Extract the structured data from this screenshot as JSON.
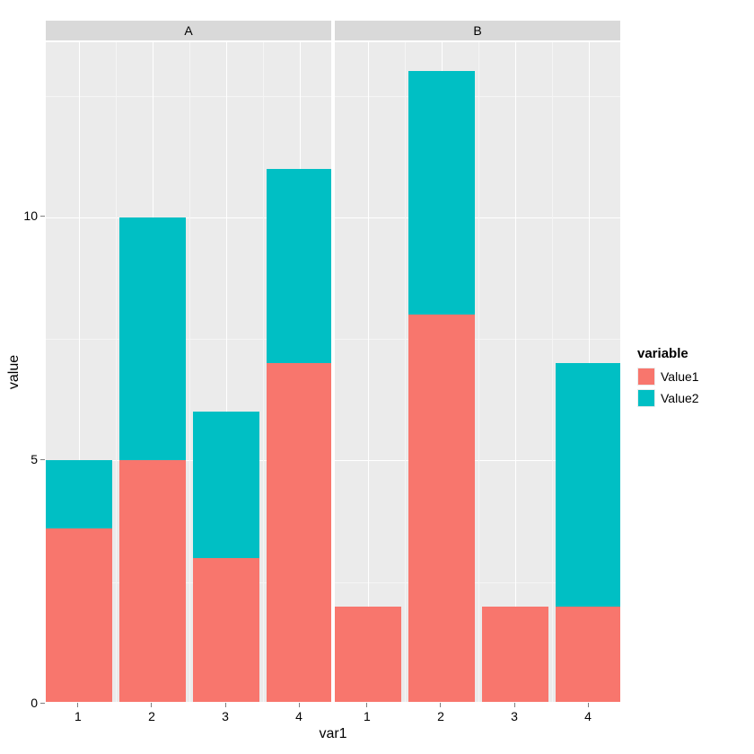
{
  "chart": {
    "type": "bar",
    "stacking": "stacked",
    "faceted_by": "facet",
    "x_title": "var1",
    "y_title": "value",
    "background_color": "#ffffff",
    "panel_background": "#ebebeb",
    "grid_major_color": "#ffffff",
    "grid_minor_color": "#f5f5f5",
    "facet_strip_background": "#d9d9d9",
    "axis_text_color": "#000000",
    "tick_color": "#7f7f7f",
    "title_fontsize": 16,
    "tick_fontsize": 14,
    "legend_title_fontsize": 15,
    "legend_label_fontsize": 14,
    "bar_width": 0.9,
    "ylim": [
      0,
      13.6
    ],
    "y_ticks": [
      0,
      5,
      10
    ],
    "y_minor_ticks": [
      2.5,
      7.5,
      12.5
    ],
    "x_ticks": [
      1,
      2,
      3,
      4
    ],
    "x_minor_ticks": [
      1.5,
      2.5,
      3.5
    ],
    "x_range": [
      0.55,
      4.45
    ],
    "legend": {
      "title": "variable",
      "items": [
        {
          "label": "Value1",
          "color": "#f8766d"
        },
        {
          "label": "Value2",
          "color": "#00bfc4"
        }
      ]
    },
    "series_colors": {
      "Value1": "#f8766d",
      "Value2": "#00bfc4"
    },
    "facets": [
      {
        "label": "A",
        "bars": [
          {
            "x": 1,
            "segments": [
              {
                "series": "Value1",
                "value": 3.6
              },
              {
                "series": "Value2",
                "value": 1.4
              }
            ]
          },
          {
            "x": 2,
            "segments": [
              {
                "series": "Value1",
                "value": 5.0
              },
              {
                "series": "Value2",
                "value": 5.0
              }
            ]
          },
          {
            "x": 3,
            "segments": [
              {
                "series": "Value1",
                "value": 3.0
              },
              {
                "series": "Value2",
                "value": 3.0
              }
            ]
          },
          {
            "x": 4,
            "segments": [
              {
                "series": "Value1",
                "value": 7.0
              },
              {
                "series": "Value2",
                "value": 4.0
              }
            ]
          }
        ]
      },
      {
        "label": "B",
        "bars": [
          {
            "x": 1,
            "segments": [
              {
                "series": "Value1",
                "value": 2.0
              },
              {
                "series": "Value2",
                "value": 0.0
              }
            ]
          },
          {
            "x": 2,
            "segments": [
              {
                "series": "Value1",
                "value": 8.0
              },
              {
                "series": "Value2",
                "value": 5.0
              }
            ]
          },
          {
            "x": 3,
            "segments": [
              {
                "series": "Value1",
                "value": 2.0
              },
              {
                "series": "Value2",
                "value": 0.0
              }
            ]
          },
          {
            "x": 4,
            "segments": [
              {
                "series": "Value1",
                "value": 2.0
              },
              {
                "series": "Value2",
                "value": 5.0
              }
            ]
          }
        ]
      }
    ]
  }
}
